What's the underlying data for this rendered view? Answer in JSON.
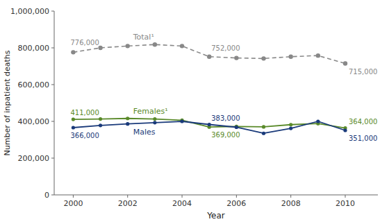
{
  "chart_data": {
    "type": "line",
    "xlabel": "Year",
    "ylabel": "Number of inpatient deaths",
    "x": [
      2000,
      2001,
      2002,
      2003,
      2004,
      2005,
      2006,
      2007,
      2008,
      2009,
      2010
    ],
    "series": [
      {
        "name": "Total¹",
        "color": "#888888",
        "line_style": "dashed",
        "marker": "circle",
        "values": [
          776000,
          800000,
          810000,
          818000,
          810000,
          752000,
          745000,
          742000,
          752000,
          758000,
          715000
        ]
      },
      {
        "name": "Females¹",
        "color": "#5a8a2a",
        "line_style": "solid",
        "marker": "circle",
        "values": [
          411000,
          413000,
          416000,
          413000,
          406000,
          369000,
          372000,
          370000,
          382000,
          388000,
          364000
        ]
      },
      {
        "name": "Males",
        "color": "#1a3a7a",
        "line_style": "solid",
        "marker": "circle",
        "values": [
          366000,
          378000,
          386000,
          393000,
          400000,
          383000,
          368000,
          335000,
          362000,
          400000,
          351000
        ]
      }
    ],
    "xlim": [
      1999.3,
      2011.2
    ],
    "xticks": [
      2000,
      2002,
      2004,
      2006,
      2008,
      2010
    ],
    "ylim": [
      0,
      1000000
    ],
    "yticks": [
      0,
      {
        "value": 200000,
        "label": "200,000"
      },
      {
        "value": 400000,
        "label": "400,000"
      },
      {
        "value": 600000,
        "label": "600,000"
      },
      {
        "value": 800000,
        "label": "800,000"
      },
      {
        "value": 1000000,
        "label": "1,000,000"
      }
    ],
    "grid": false,
    "annotations": [
      {
        "text": "776,000",
        "x": 2000,
        "y": 776000,
        "color": "#888888"
      },
      {
        "text": "752,000",
        "x": 2005,
        "y": 752000,
        "color": "#888888"
      },
      {
        "text": "715,000",
        "x": 2010,
        "y": 715000,
        "color": "#888888"
      },
      {
        "text": "411,000",
        "x": 2000,
        "y": 411000,
        "color": "#5a8a2a"
      },
      {
        "text": "369,000",
        "x": 2005,
        "y": 369000,
        "color": "#5a8a2a"
      },
      {
        "text": "364,000",
        "x": 2010,
        "y": 364000,
        "color": "#5a8a2a"
      },
      {
        "text": "366,000",
        "x": 2000,
        "y": 366000,
        "color": "#1a3a7a"
      },
      {
        "text": "383,000",
        "x": 2005,
        "y": 383000,
        "color": "#1a3a7a"
      },
      {
        "text": "351,000",
        "x": 2010,
        "y": 351000,
        "color": "#1a3a7a"
      }
    ]
  }
}
